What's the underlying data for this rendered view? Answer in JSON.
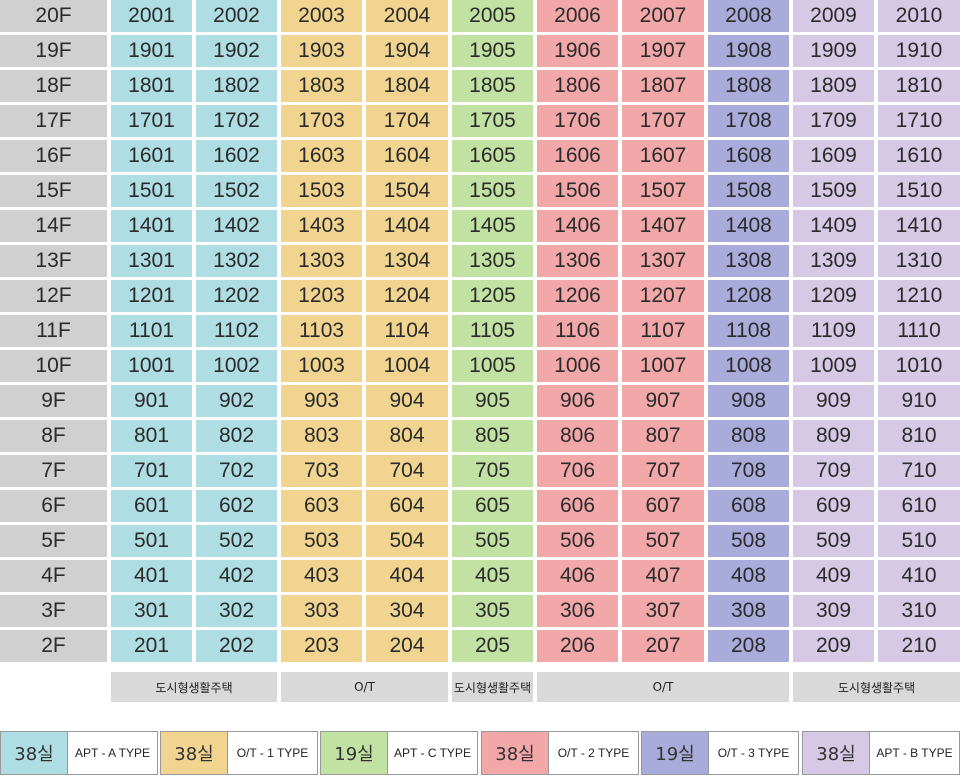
{
  "floors": [
    "20F",
    "19F",
    "18F",
    "17F",
    "16F",
    "15F",
    "14F",
    "13F",
    "12F",
    "11F",
    "10F",
    "9F",
    "8F",
    "7F",
    "6F",
    "5F",
    "4F",
    "3F",
    "2F"
  ],
  "unit_suffixes": [
    "01",
    "02",
    "03",
    "04",
    "05",
    "06",
    "07",
    "08",
    "09",
    "10"
  ],
  "unit_types": [
    "apt-a",
    "apt-a",
    "ot-1",
    "ot-1",
    "apt-c",
    "ot-2",
    "ot-2",
    "ot-3",
    "apt-b",
    "apt-b"
  ],
  "type_colors": {
    "apt-a": "#afdde4",
    "ot-1": "#f0d48f",
    "apt-c": "#c2e2a3",
    "ot-2": "#f2a7a9",
    "ot-3": "#a9abdb",
    "apt-b": "#d5c9e6",
    "floor": "#d0d0d0"
  },
  "zones": [
    {
      "label": "도시형생활주택"
    },
    {
      "label": "O/T"
    },
    {
      "label": "도시형생활주택"
    },
    {
      "label": "O/T"
    },
    {
      "label": "도시형생활주택"
    }
  ],
  "legend": [
    {
      "size": "38실",
      "label": "APT - A TYPE",
      "type": "apt-a"
    },
    {
      "size": "38실",
      "label": "O/T - 1 TYPE",
      "type": "ot-1"
    },
    {
      "size": "19실",
      "label": "APT - C TYPE",
      "type": "apt-c"
    },
    {
      "size": "38실",
      "label": "O/T - 2 TYPE",
      "type": "ot-2"
    },
    {
      "size": "19실",
      "label": "O/T - 3 TYPE",
      "type": "ot-3"
    },
    {
      "size": "38실",
      "label": "APT - B TYPE",
      "type": "apt-b"
    }
  ]
}
